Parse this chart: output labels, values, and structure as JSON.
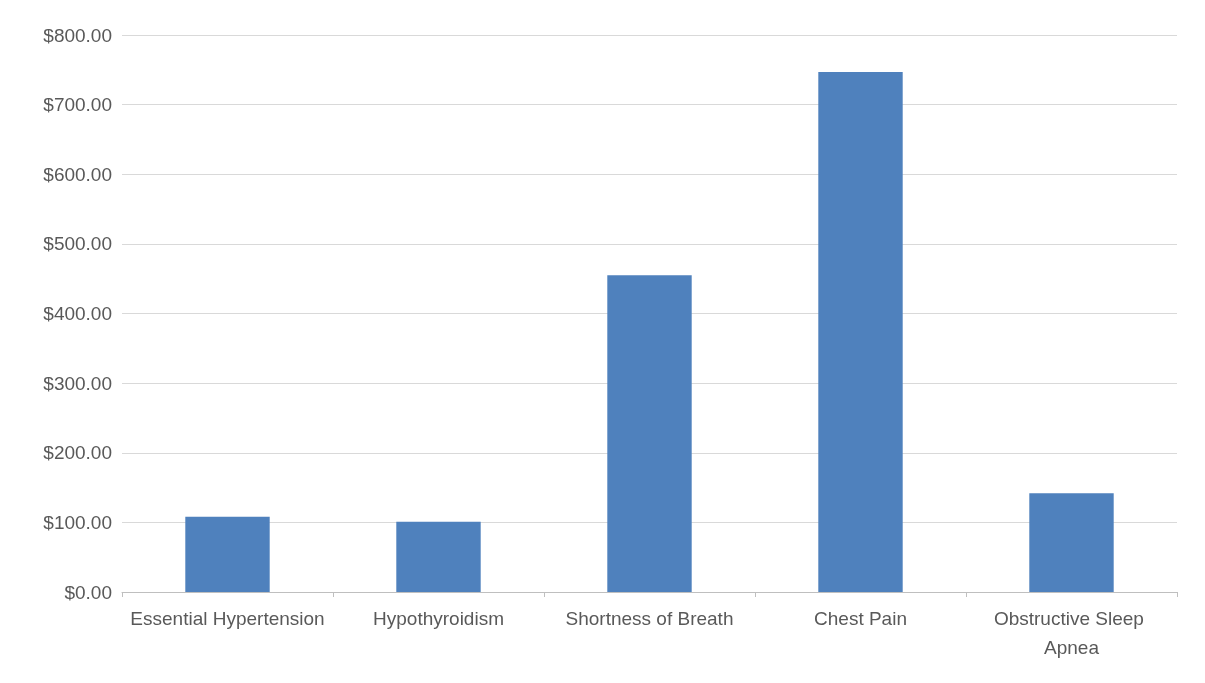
{
  "chart_data": {
    "type": "bar",
    "categories": [
      "Essential Hypertension",
      "Hypothyroidism",
      "Shortness of Breath",
      "Chest Pain",
      "Obstructive Sleep Apnea"
    ],
    "values": [
      108,
      101,
      455,
      747,
      142
    ],
    "color": "#4f81bd",
    "ylim": [
      0,
      800
    ],
    "yticks": [
      {
        "value": 0,
        "label": "$0.00"
      },
      {
        "value": 100,
        "label": "$100.00"
      },
      {
        "value": 200,
        "label": "$200.00"
      },
      {
        "value": 300,
        "label": "$300.00"
      },
      {
        "value": 400,
        "label": "$400.00"
      },
      {
        "value": 500,
        "label": "$500.00"
      },
      {
        "value": 600,
        "label": "$600.00"
      },
      {
        "value": 700,
        "label": "$700.00"
      },
      {
        "value": 800,
        "label": "$800.00"
      }
    ],
    "grid": true
  }
}
